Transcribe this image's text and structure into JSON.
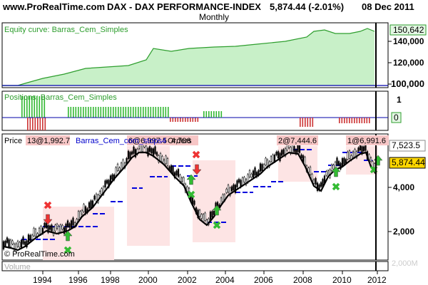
{
  "header": {
    "site": "www.ProRealTime.com",
    "instrument": "DAX - DAX PERFORMANCE-INDEX",
    "price_change": "5,874.44 (-2.01%)",
    "date": "08 Dec 2011",
    "period": "Monthly"
  },
  "equity_panel": {
    "label": "Equity curve: Barras_Cem_Simples",
    "ticks": [
      "140,000",
      "120,000",
      "100,000"
    ],
    "last_value": "150,642",
    "fill_color": "#c8f0c8",
    "line_color": "#2e9e2e"
  },
  "positions_panel": {
    "label": "Positions: Barras_Cem_Simples",
    "ticks": [
      "1",
      "0"
    ],
    "long_color": "#33b833",
    "short_color": "#cc3333"
  },
  "price_panel": {
    "label_prefix": "Price",
    "label_strategy": "Barras_Cem_com_stops4",
    "label_orders": "Orders",
    "ticks": [
      "7,523.5",
      "4,000",
      "2,000"
    ],
    "current_price": "5,874.44",
    "annotations": [
      "13@1,992.7",
      "6@6,997.5",
      "4,706",
      "2@7,444.6",
      "1@6,991.6"
    ],
    "watermark": "© ProRealTime.com",
    "buy_color": "#33bb33",
    "sell_color": "#ee3333"
  },
  "volume_panel": {
    "label": "Volume",
    "tick": "2,000M"
  },
  "x_axis": {
    "labels": [
      "1994",
      "1996",
      "1998",
      "2000",
      "2002",
      "2004",
      "2006",
      "2008",
      "2010",
      "2012"
    ]
  }
}
